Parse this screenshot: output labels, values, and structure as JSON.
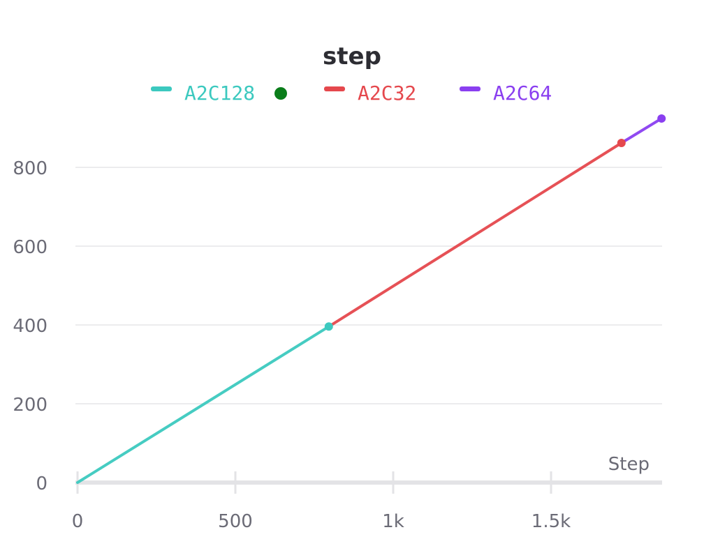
{
  "chart_data": {
    "type": "line",
    "title": "step",
    "xlabel": "Step",
    "ylabel": "",
    "xlim": [
      0,
      1850
    ],
    "ylim": [
      0,
      930
    ],
    "x_ticks": [
      {
        "value": 0,
        "label": "0"
      },
      {
        "value": 500,
        "label": "500"
      },
      {
        "value": 1000,
        "label": "1k"
      },
      {
        "value": 1500,
        "label": "1.5k"
      }
    ],
    "y_ticks": [
      {
        "value": 0,
        "label": "0"
      },
      {
        "value": 200,
        "label": "200"
      },
      {
        "value": 400,
        "label": "400"
      },
      {
        "value": 600,
        "label": "600"
      },
      {
        "value": 800,
        "label": "800"
      }
    ],
    "grid": "horizontal",
    "legend_position": "top-center",
    "legend_status_color": "#0a7d1a",
    "series": [
      {
        "name": "A2C128",
        "color": "#3cc9bf",
        "x": [
          0,
          796
        ],
        "y": [
          0,
          396
        ]
      },
      {
        "name": "A2C32",
        "color": "#e5484d",
        "x": [
          796,
          1723
        ],
        "y": [
          396,
          862
        ]
      },
      {
        "name": "A2C64",
        "color": "#8a3ff0",
        "x": [
          1723,
          1850
        ],
        "y": [
          862,
          924
        ]
      }
    ]
  }
}
